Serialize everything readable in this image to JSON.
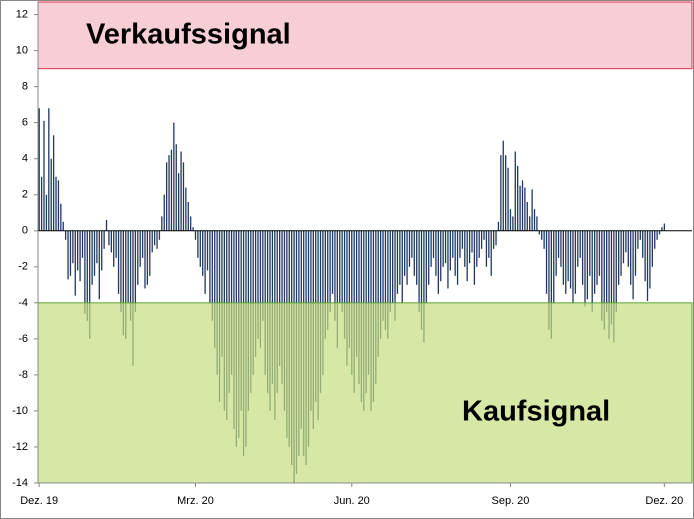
{
  "chart_data": {
    "type": "bar",
    "bands": [
      {
        "label": "Verkaufssignal",
        "from": 9,
        "to": 12.7,
        "color": "#f4b8c4",
        "border": "#d8344a"
      },
      {
        "label": "Kaufsignal",
        "from": -14,
        "to": -4,
        "color": "#c6de80",
        "border": "#5aa532"
      }
    ],
    "categories": [
      "Dez. 19",
      null,
      null,
      null,
      null,
      null,
      null,
      null,
      null,
      null,
      null,
      null,
      null,
      null,
      null,
      null,
      null,
      null,
      null,
      null,
      null,
      null,
      null,
      null,
      null,
      null,
      null,
      null,
      null,
      null,
      null,
      null,
      null,
      null,
      null,
      null,
      null,
      null,
      null,
      null,
      null,
      null,
      null,
      null,
      null,
      null,
      null,
      null,
      null,
      null,
      null,
      null,
      null,
      null,
      null,
      null,
      null,
      null,
      null,
      null,
      null,
      null,
      null,
      null,
      null,
      "Mrz. 20",
      null,
      null,
      null,
      null,
      null,
      null,
      null,
      null,
      null,
      null,
      null,
      null,
      null,
      null,
      null,
      null,
      null,
      null,
      null,
      null,
      null,
      null,
      null,
      null,
      null,
      null,
      null,
      null,
      null,
      null,
      null,
      null,
      null,
      null,
      null,
      null,
      null,
      null,
      null,
      null,
      null,
      null,
      null,
      null,
      null,
      null,
      null,
      null,
      null,
      null,
      null,
      null,
      null,
      null,
      null,
      null,
      null,
      null,
      null,
      null,
      null,
      null,
      null,
      null,
      "Jun. 20",
      null,
      null,
      null,
      null,
      null,
      null,
      null,
      null,
      null,
      null,
      null,
      null,
      null,
      null,
      null,
      null,
      null,
      null,
      null,
      null,
      null,
      null,
      null,
      null,
      null,
      null,
      null,
      null,
      null,
      null,
      null,
      null,
      null,
      null,
      null,
      null,
      null,
      null,
      null,
      null,
      null,
      null,
      null,
      null,
      null,
      null,
      null,
      null,
      null,
      null,
      null,
      null,
      null,
      null,
      null,
      null,
      null,
      null,
      null,
      null,
      null,
      null,
      null,
      null,
      null,
      "Sep. 20",
      null,
      null,
      null,
      null,
      null,
      null,
      null,
      null,
      null,
      null,
      null,
      null,
      null,
      null,
      null,
      null,
      null,
      null,
      null,
      null,
      null,
      null,
      null,
      null,
      null,
      null,
      null,
      null,
      null,
      null,
      null,
      null,
      null,
      null,
      null,
      null,
      null,
      null,
      null,
      null,
      null,
      null,
      null,
      null,
      null,
      null,
      null,
      null,
      null,
      null,
      null,
      null,
      null,
      null,
      null,
      null,
      null,
      null,
      null,
      null,
      null,
      null,
      null,
      "Dez. 20"
    ],
    "values": [
      6.8,
      3,
      6.1,
      2,
      6.8,
      4,
      5.3,
      3,
      2.8,
      1.5,
      0.5,
      -0.5,
      -2.7,
      -2.5,
      -1.8,
      -3.6,
      -2.2,
      -2.8,
      -1.5,
      -4.6,
      -5,
      -6,
      -3,
      -2.5,
      -1.8,
      -3.8,
      -2.2,
      -1,
      0.6,
      -0.8,
      -1.2,
      -2,
      -1.5,
      -3.5,
      -4.5,
      -5.8,
      -6,
      -4,
      -5,
      -7.5,
      -4.5,
      -3,
      -2,
      -1.5,
      -3.2,
      -3,
      -2.5,
      -1.2,
      -0.8,
      -1,
      -0.5,
      0.8,
      2,
      3.8,
      4.2,
      4.5,
      6,
      4.8,
      3.2,
      4.4,
      3.8,
      2.4,
      1.6,
      0.8,
      0.2,
      -0.5,
      -1.5,
      -2,
      -2.5,
      -3.5,
      -2.2,
      -4,
      -5,
      -6.5,
      -8,
      -9.5,
      -7,
      -10,
      -10.5,
      -9,
      -8,
      -11,
      -12,
      -11.5,
      -10,
      -12.5,
      -12,
      -10,
      -9,
      -8,
      -7,
      -6,
      -6.5,
      -5,
      -8,
      -9,
      -10,
      -8.5,
      -10.5,
      -9,
      -7.5,
      -8.5,
      -10,
      -11.5,
      -12,
      -13,
      -14,
      -13.5,
      -12.5,
      -11,
      -12.5,
      -13,
      -12,
      -10,
      -11,
      -9.5,
      -10.5,
      -9,
      -8,
      -6,
      -5.5,
      -4.5,
      -3.5,
      -5,
      -6.5,
      -4,
      -4.5,
      -6,
      -7.5,
      -6.5,
      -8,
      -9,
      -7,
      -8.5,
      -9.5,
      -10,
      -9,
      -8,
      -10,
      -9.5,
      -8.5,
      -7,
      -6,
      -5,
      -5.5,
      -6,
      -4.5,
      -4,
      -5,
      -3.5,
      -3,
      -4,
      -2.5,
      -3,
      -2,
      -1.5,
      -2.5,
      -3,
      -4.5,
      -5.5,
      -6.2,
      -4,
      -3,
      -2,
      -1.5,
      -2.5,
      -3.5,
      -2.8,
      -2,
      -1.8,
      -3.2,
      -2.2,
      -1.5,
      -2.5,
      -3,
      -1.5,
      -1,
      -2,
      -2.8,
      -1.8,
      -1.2,
      -3,
      -2,
      -1.5,
      -1,
      -0.5,
      -2,
      -1.5,
      -2.5,
      -1,
      -0.8,
      0.5,
      4.2,
      5,
      4.2,
      3.5,
      1.2,
      0.8,
      4.4,
      3.6,
      2.5,
      2.8,
      2.4,
      1.6,
      0.8,
      2.3,
      1.2,
      0.8,
      -0.2,
      -0.5,
      -1,
      -3.5,
      -5.5,
      -6,
      -4,
      -2.5,
      -1.5,
      -2,
      -3,
      -3.5,
      -2.8,
      -3.2,
      -4,
      -3.5,
      -2,
      -1.5,
      -3,
      -4.2,
      -3.8,
      -2.5,
      -4.5,
      -3.5,
      -3,
      -2.5,
      -5,
      -5.5,
      -4.5,
      -6,
      -5.2,
      -6.2,
      -4.5,
      -3,
      -2.5,
      -1.8,
      -1.2,
      -2,
      -3,
      -3.8,
      -2.5,
      -1,
      -0.5,
      -1.5,
      -2.8,
      -3.9,
      -3.2,
      -2,
      -1,
      -0.5,
      -0.2,
      0.2,
      0.4
    ],
    "color": "#1f3864",
    "ylim": [
      -14,
      12.7
    ],
    "yticks": [
      -14,
      -12,
      -10,
      -8,
      -6,
      -4,
      -2,
      0,
      2,
      4,
      6,
      8,
      10,
      12
    ]
  }
}
